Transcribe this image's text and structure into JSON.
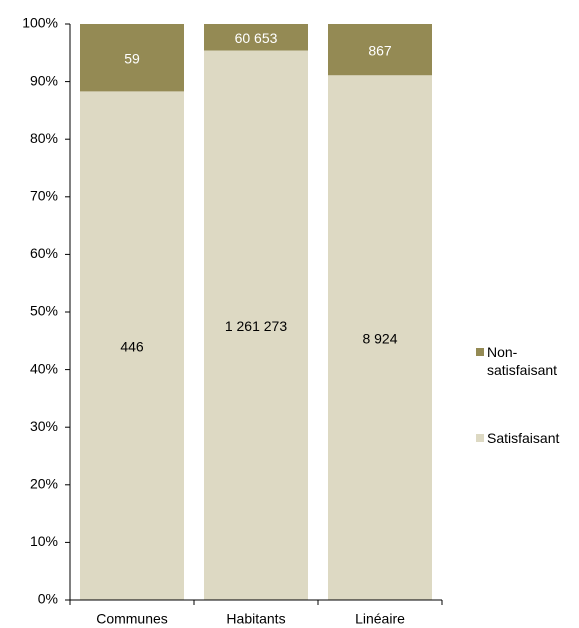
{
  "chart_data": {
    "type": "stacked-bar",
    "categories": [
      "Communes",
      "Habitants",
      "Linéaire"
    ],
    "series": [
      {
        "name": "Satisfaisant",
        "color": "#ddd9c3",
        "label_color": "#000000",
        "values": [
          88.3,
          95.4,
          91.1
        ],
        "value_labels": [
          "446",
          "1 261 273",
          "8 924"
        ]
      },
      {
        "name": "Non-satisfaisant",
        "color": "#948a54",
        "label_color": "#ffffff",
        "values": [
          11.7,
          4.6,
          8.9
        ],
        "value_labels": [
          "59",
          "60 653",
          "867"
        ]
      }
    ],
    "ylim": [
      0,
      100
    ],
    "yticks": [
      {
        "value": 0,
        "label": "0%"
      },
      {
        "value": 10,
        "label": "10%"
      },
      {
        "value": 20,
        "label": "20%"
      },
      {
        "value": 30,
        "label": "30%"
      },
      {
        "value": 40,
        "label": "40%"
      },
      {
        "value": 50,
        "label": "50%"
      },
      {
        "value": 60,
        "label": "60%"
      },
      {
        "value": 70,
        "label": "70%"
      },
      {
        "value": 80,
        "label": "80%"
      },
      {
        "value": 90,
        "label": "90%"
      },
      {
        "value": 100,
        "label": "100%"
      }
    ],
    "grid": false,
    "legend": "right"
  }
}
